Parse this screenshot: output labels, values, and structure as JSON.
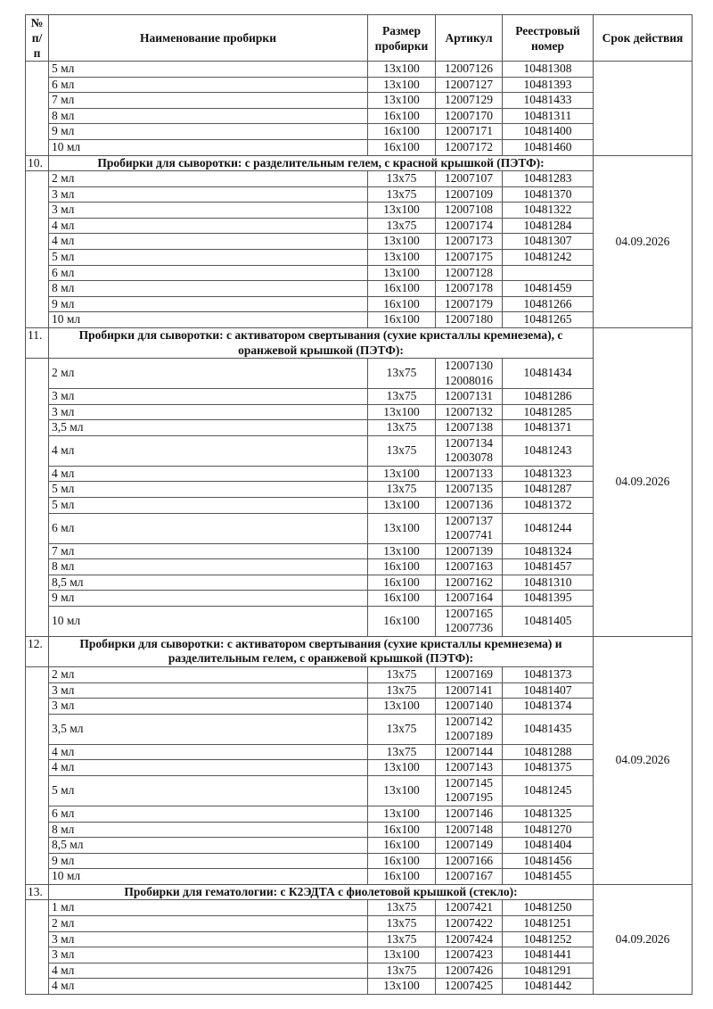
{
  "header": {
    "num": "№ п/п",
    "name": "Наименование пробирки",
    "size": "Размер пробирки",
    "article": "Артикул",
    "registry": "Реестровый номер",
    "expiry": "Срок действия"
  },
  "sections": [
    {
      "number": "",
      "title": "",
      "expiry": "",
      "rows": [
        {
          "name": "5 мл",
          "size": "13x100",
          "article": [
            "12007126"
          ],
          "registry": "10481308"
        },
        {
          "name": "6 мл",
          "size": "13x100",
          "article": [
            "12007127"
          ],
          "registry": "10481393"
        },
        {
          "name": "7 мл",
          "size": "13x100",
          "article": [
            "12007129"
          ],
          "registry": "10481433"
        },
        {
          "name": "8 мл",
          "size": "16x100",
          "article": [
            "12007170"
          ],
          "registry": "10481311"
        },
        {
          "name": "9 мл",
          "size": "16x100",
          "article": [
            "12007171"
          ],
          "registry": "10481400"
        },
        {
          "name": "10 мл",
          "size": "16x100",
          "article": [
            "12007172"
          ],
          "registry": "10481460"
        }
      ]
    },
    {
      "number": "10.",
      "title": "Пробирки для сыворотки: с разделительным гелем, с красной крышкой (ПЭТФ):",
      "expiry": "04.09.2026",
      "rows": [
        {
          "name": "2 мл",
          "size": "13x75",
          "article": [
            "12007107"
          ],
          "registry": "10481283"
        },
        {
          "name": "3 мл",
          "size": "13x75",
          "article": [
            "12007109"
          ],
          "registry": "10481370"
        },
        {
          "name": "3 мл",
          "size": "13x100",
          "article": [
            "12007108"
          ],
          "registry": "10481322"
        },
        {
          "name": "4 мл",
          "size": "13x75",
          "article": [
            "12007174"
          ],
          "registry": "10481284"
        },
        {
          "name": "4 мл",
          "size": "13x100",
          "article": [
            "12007173"
          ],
          "registry": "10481307"
        },
        {
          "name": "5 мл",
          "size": "13x100",
          "article": [
            "12007175"
          ],
          "registry": "10481242"
        },
        {
          "name": "6 мл",
          "size": "13x100",
          "article": [
            "12007128"
          ],
          "registry": ""
        },
        {
          "name": "8 мл",
          "size": "16x100",
          "article": [
            "12007178"
          ],
          "registry": "10481459"
        },
        {
          "name": "9 мл",
          "size": "16x100",
          "article": [
            "12007179"
          ],
          "registry": "10481266"
        },
        {
          "name": "10 мл",
          "size": "16x100",
          "article": [
            "12007180"
          ],
          "registry": "10481265"
        }
      ]
    },
    {
      "number": "11.",
      "title": "Пробирки для сыворотки: с активатором свертывания (сухие кристаллы кремнезема), с оранжевой крышкой (ПЭТФ):",
      "expiry": "04.09.2026",
      "rows": [
        {
          "name": "2 мл",
          "size": "13x75",
          "article": [
            "12007130",
            "12008016"
          ],
          "registry": "10481434"
        },
        {
          "name": "3 мл",
          "size": "13x75",
          "article": [
            "12007131"
          ],
          "registry": "10481286"
        },
        {
          "name": "3 мл",
          "size": "13x100",
          "article": [
            "12007132"
          ],
          "registry": "10481285"
        },
        {
          "name": "3,5 мл",
          "size": "13x75",
          "article": [
            "12007138"
          ],
          "registry": "10481371"
        },
        {
          "name": "4 мл",
          "size": "13x75",
          "article": [
            "12007134",
            "12003078"
          ],
          "registry": "10481243"
        },
        {
          "name": "4 мл",
          "size": "13x100",
          "article": [
            "12007133"
          ],
          "registry": "10481323"
        },
        {
          "name": "5 мл",
          "size": "13x75",
          "article": [
            "12007135"
          ],
          "registry": "10481287"
        },
        {
          "name": "5 мл",
          "size": "13x100",
          "article": [
            "12007136"
          ],
          "registry": "10481372"
        },
        {
          "name": "6 мл",
          "size": "13x100",
          "article": [
            "12007137",
            "12007741"
          ],
          "registry": "10481244"
        },
        {
          "name": "7 мл",
          "size": "13x100",
          "article": [
            "12007139"
          ],
          "registry": "10481324"
        },
        {
          "name": "8 мл",
          "size": "16x100",
          "article": [
            "12007163"
          ],
          "registry": "10481457"
        },
        {
          "name": "8,5 мл",
          "size": "16x100",
          "article": [
            "12007162"
          ],
          "registry": "10481310"
        },
        {
          "name": "9 мл",
          "size": "16x100",
          "article": [
            "12007164"
          ],
          "registry": "10481395"
        },
        {
          "name": "10 мл",
          "size": "16x100",
          "article": [
            "12007165",
            "12007736"
          ],
          "registry": "10481405"
        }
      ]
    },
    {
      "number": "12.",
      "title": "Пробирки для сыворотки: с активатором свертывания (сухие кристаллы кремнезема) и разделительным гелем, с оранжевой крышкой (ПЭТФ):",
      "expiry": "04.09.2026",
      "rows": [
        {
          "name": "2 мл",
          "size": "13x75",
          "article": [
            "12007169"
          ],
          "registry": "10481373"
        },
        {
          "name": "3 мл",
          "size": "13x75",
          "article": [
            "12007141"
          ],
          "registry": "10481407"
        },
        {
          "name": "3 мл",
          "size": "13x100",
          "article": [
            "12007140"
          ],
          "registry": "10481374"
        },
        {
          "name": "3,5 мл",
          "size": "13x75",
          "article": [
            "12007142",
            "12007189"
          ],
          "registry": "10481435"
        },
        {
          "name": "4 мл",
          "size": "13x75",
          "article": [
            "12007144"
          ],
          "registry": "10481288"
        },
        {
          "name": "4 мл",
          "size": "13x100",
          "article": [
            "12007143"
          ],
          "registry": "10481375"
        },
        {
          "name": "5 мл",
          "size": "13x100",
          "article": [
            "12007145",
            "12007195"
          ],
          "registry": "10481245"
        },
        {
          "name": "6 мл",
          "size": "13x100",
          "article": [
            "12007146"
          ],
          "registry": "10481325"
        },
        {
          "name": "8 мл",
          "size": "16x100",
          "article": [
            "12007148"
          ],
          "registry": "10481270"
        },
        {
          "name": "8,5 мл",
          "size": "16x100",
          "article": [
            "12007149"
          ],
          "registry": "10481404"
        },
        {
          "name": "9 мл",
          "size": "16x100",
          "article": [
            "12007166"
          ],
          "registry": "10481456"
        },
        {
          "name": "10 мл",
          "size": "16x100",
          "article": [
            "12007167"
          ],
          "registry": "10481455"
        }
      ]
    },
    {
      "number": "13.",
      "title": "Пробирки для гематологии: с К2ЭДТА с фиолетовой крышкой (стекло):",
      "expiry": "04.09.2026",
      "rows": [
        {
          "name": "1 мл",
          "size": "13x75",
          "article": [
            "12007421"
          ],
          "registry": "10481250"
        },
        {
          "name": "2 мл",
          "size": "13x75",
          "article": [
            "12007422"
          ],
          "registry": "10481251"
        },
        {
          "name": "3 мл",
          "size": "13x75",
          "article": [
            "12007424"
          ],
          "registry": "10481252"
        },
        {
          "name": "3 мл",
          "size": "13x100",
          "article": [
            "12007423"
          ],
          "registry": "10481441"
        },
        {
          "name": "4 мл",
          "size": "13x75",
          "article": [
            "12007426"
          ],
          "registry": "10481291"
        },
        {
          "name": "4 мл",
          "size": "13x100",
          "article": [
            "12007425"
          ],
          "registry": "10481442"
        }
      ]
    }
  ]
}
